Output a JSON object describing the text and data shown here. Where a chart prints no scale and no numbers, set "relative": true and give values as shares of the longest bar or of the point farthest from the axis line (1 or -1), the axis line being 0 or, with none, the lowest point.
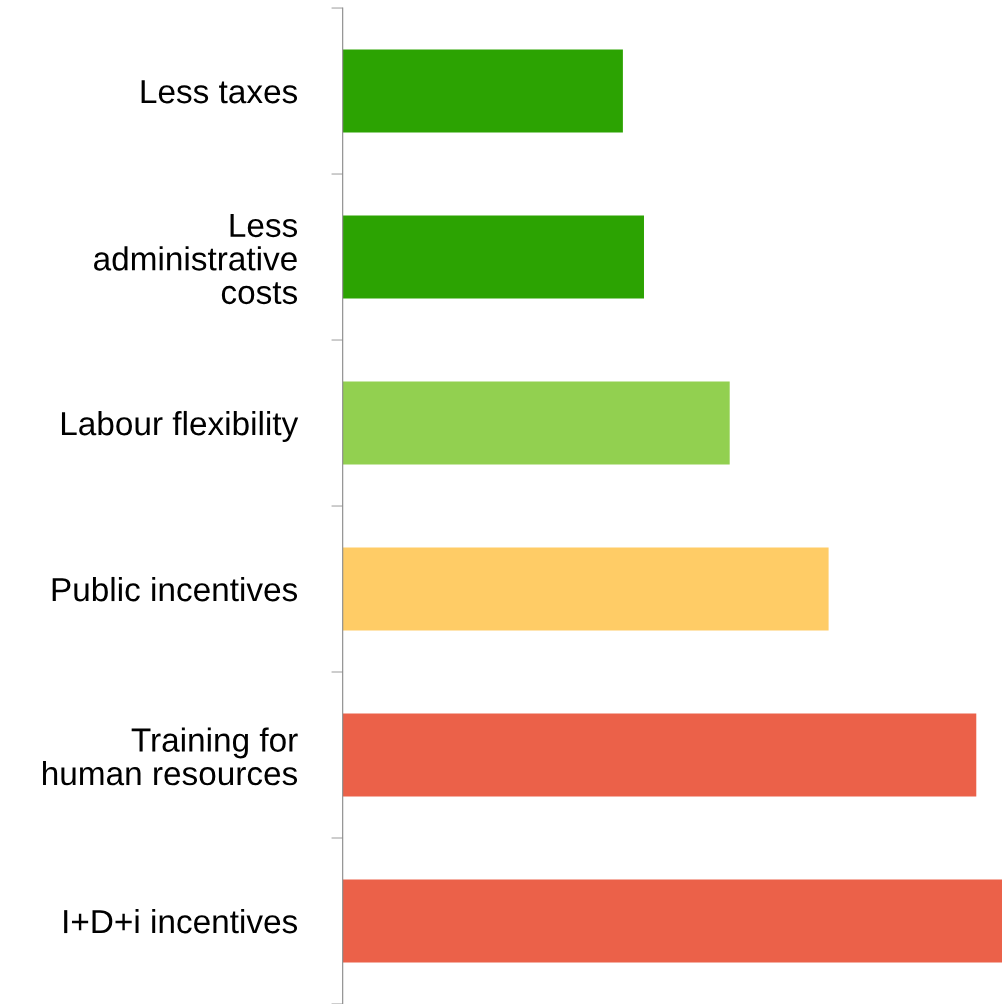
{
  "chart_data": {
    "type": "bar",
    "orientation": "horizontal",
    "relative": true,
    "tick_labels": "y",
    "categories": [
      "Less taxes",
      "Less\nadministrative\ncosts",
      "Labour flexibility",
      "Public incentives",
      "Training for\nhuman resources",
      "I+D+i incentives"
    ],
    "values": [
      0.425,
      0.457,
      0.587,
      0.737,
      0.961,
      1
    ],
    "colors": [
      "#2ca302",
      "#2ca302",
      "#92d050",
      "#ffcc66",
      "#eb6149",
      "#eb6149"
    ]
  }
}
